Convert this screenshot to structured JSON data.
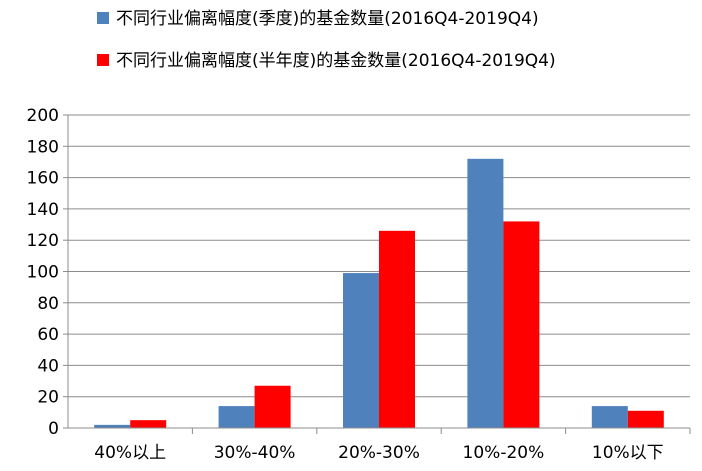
{
  "chart_data": {
    "type": "bar",
    "categories": [
      "40%以上",
      "30%-40%",
      "20%-30%",
      "10%-20%",
      "10%以下"
    ],
    "series": [
      {
        "name": "不同行业偏离幅度(季度)的基金数量(2016Q4-2019Q4)",
        "color": "#4F81BD",
        "values": [
          2,
          14,
          99,
          172,
          14
        ]
      },
      {
        "name": "不同行业偏离幅度(半年度)的基金数量(2016Q4-2019Q4)",
        "color": "#FF0000",
        "values": [
          5,
          27,
          126,
          132,
          11
        ]
      }
    ],
    "ylim": [
      0,
      200
    ],
    "yticks": [
      0,
      20,
      40,
      60,
      80,
      100,
      120,
      140,
      160,
      180,
      200
    ],
    "grid": true,
    "legend_position": "top"
  }
}
